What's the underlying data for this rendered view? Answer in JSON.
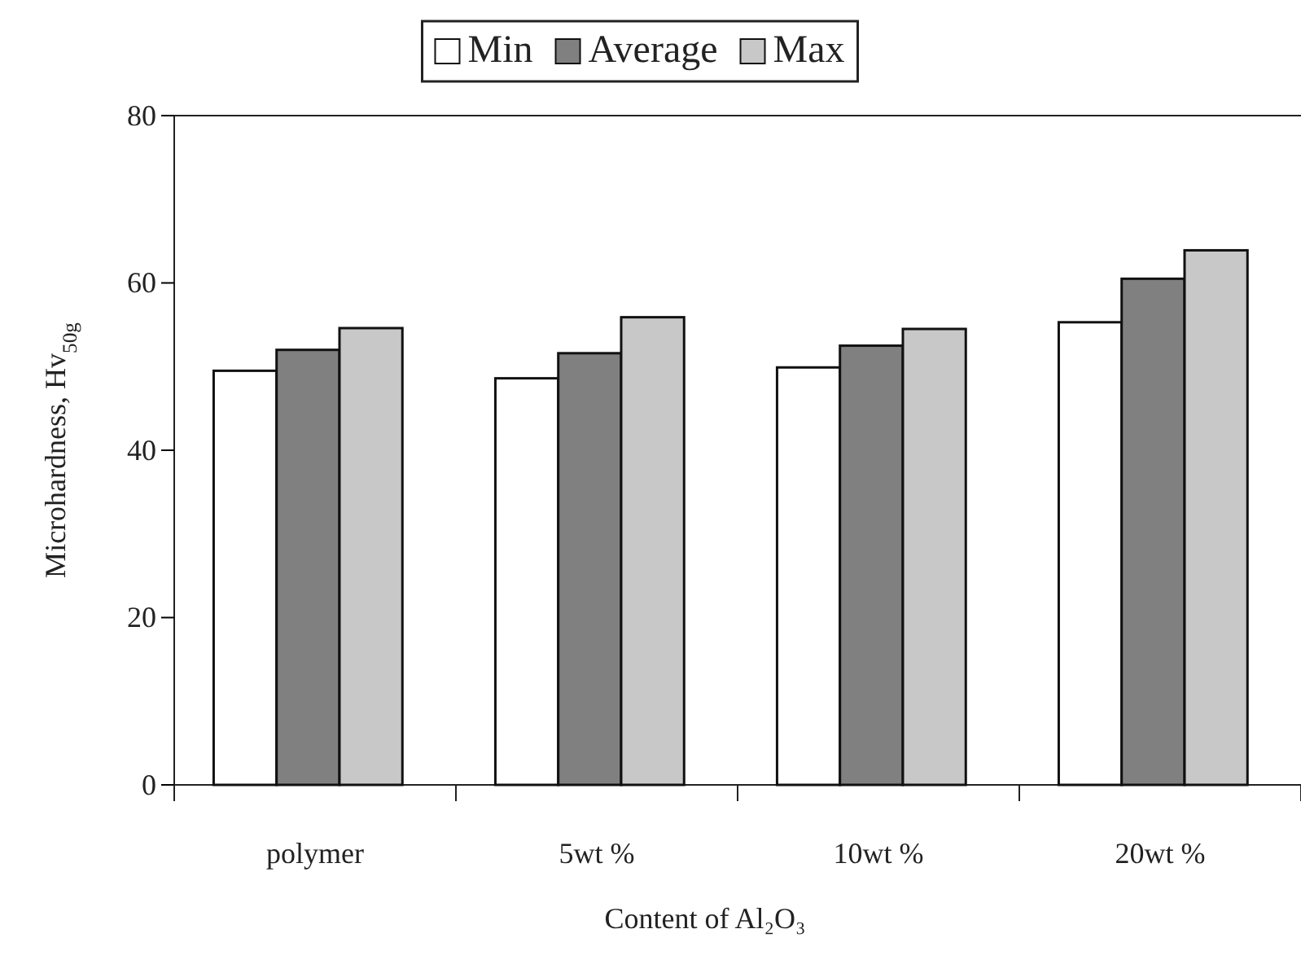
{
  "chart_data": {
    "type": "bar",
    "xlabel": "Content of Al₂O₃",
    "ylabel": "Microhardness, Hv$_{50g}$",
    "categories": [
      "polymer",
      "5wt %",
      "10wt %",
      "20wt %"
    ],
    "series": [
      {
        "name": "Min",
        "color": "#ffffff",
        "values": [
          49.5,
          48.6,
          49.9,
          55.3
        ]
      },
      {
        "name": "Average",
        "color": "#808080",
        "values": [
          52.0,
          51.6,
          52.5,
          60.5
        ]
      },
      {
        "name": "Max",
        "color": "#c8c8c8",
        "values": [
          54.6,
          55.9,
          54.5,
          63.9
        ]
      }
    ],
    "ylim": [
      0,
      80
    ],
    "yticks": [
      0,
      20,
      40,
      60,
      80
    ],
    "grid": false,
    "legend": "top"
  }
}
